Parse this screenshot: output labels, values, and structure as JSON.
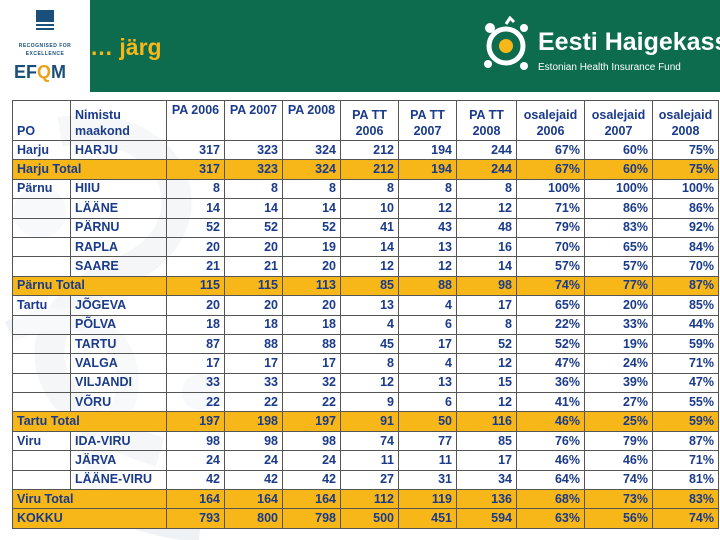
{
  "header": {
    "title": "… järg",
    "efqm": {
      "recognised_line1": "RECOGNISED FOR",
      "recognised_line2": "EXCELLENCE",
      "word_prefix": "EF",
      "word_o": "Q",
      "word_suffix": "M"
    },
    "brand": {
      "name": "Eesti Haigekassa",
      "subtitle": "Estonian Health Insurance Fund"
    }
  },
  "colors": {
    "band": "#0d6b4e",
    "accent": "#f7b719",
    "text": "#1a3a8a"
  },
  "table": {
    "headers": {
      "po": "PO",
      "nimistu_line1": "Nimistu",
      "nimistu_line2": "maakond",
      "pa2006": "PA 2006",
      "pa2007": "PA 2007",
      "pa2008": "PA 2008",
      "patt1_line1": "PA TT",
      "patt1_line2": "2006",
      "patt2_line1": "PA TT",
      "patt2_line2": "2007",
      "patt3_line1": "PA TT",
      "patt3_line2": "2008",
      "os1_line1": "osalejaid",
      "os1_line2": "2006",
      "os2_line1": "osalejaid",
      "os2_line2": "2007",
      "os3_line1": "osalejaid",
      "os3_line2": "2008"
    },
    "rows": [
      {
        "po": "Harju",
        "county": "HARJU",
        "v": [
          "317",
          "323",
          "324",
          "212",
          "194",
          "244",
          "67%",
          "60%",
          "75%"
        ],
        "total": false
      },
      {
        "po": "Harju Total",
        "county": "",
        "v": [
          "317",
          "323",
          "324",
          "212",
          "194",
          "244",
          "67%",
          "60%",
          "75%"
        ],
        "total": true
      },
      {
        "po": "Pärnu",
        "county": "HIIU",
        "v": [
          "8",
          "8",
          "8",
          "8",
          "8",
          "8",
          "100%",
          "100%",
          "100%"
        ],
        "total": false
      },
      {
        "po": "",
        "county": "LÄÄNE",
        "v": [
          "14",
          "14",
          "14",
          "10",
          "12",
          "12",
          "71%",
          "86%",
          "86%"
        ],
        "total": false
      },
      {
        "po": "",
        "county": "PÄRNU",
        "v": [
          "52",
          "52",
          "52",
          "41",
          "43",
          "48",
          "79%",
          "83%",
          "92%"
        ],
        "total": false
      },
      {
        "po": "",
        "county": "RAPLA",
        "v": [
          "20",
          "20",
          "19",
          "14",
          "13",
          "16",
          "70%",
          "65%",
          "84%"
        ],
        "total": false
      },
      {
        "po": "",
        "county": "SAARE",
        "v": [
          "21",
          "21",
          "20",
          "12",
          "12",
          "14",
          "57%",
          "57%",
          "70%"
        ],
        "total": false
      },
      {
        "po": "Pärnu Total",
        "county": "",
        "v": [
          "115",
          "115",
          "113",
          "85",
          "88",
          "98",
          "74%",
          "77%",
          "87%"
        ],
        "total": true
      },
      {
        "po": "Tartu",
        "county": "JÕGEVA",
        "v": [
          "20",
          "20",
          "20",
          "13",
          "4",
          "17",
          "65%",
          "20%",
          "85%"
        ],
        "total": false
      },
      {
        "po": "",
        "county": "PÕLVA",
        "v": [
          "18",
          "18",
          "18",
          "4",
          "6",
          "8",
          "22%",
          "33%",
          "44%"
        ],
        "total": false
      },
      {
        "po": "",
        "county": "TARTU",
        "v": [
          "87",
          "88",
          "88",
          "45",
          "17",
          "52",
          "52%",
          "19%",
          "59%"
        ],
        "total": false
      },
      {
        "po": "",
        "county": "VALGA",
        "v": [
          "17",
          "17",
          "17",
          "8",
          "4",
          "12",
          "47%",
          "24%",
          "71%"
        ],
        "total": false
      },
      {
        "po": "",
        "county": "VILJANDI",
        "v": [
          "33",
          "33",
          "32",
          "12",
          "13",
          "15",
          "36%",
          "39%",
          "47%"
        ],
        "total": false
      },
      {
        "po": "",
        "county": "VÕRU",
        "v": [
          "22",
          "22",
          "22",
          "9",
          "6",
          "12",
          "41%",
          "27%",
          "55%"
        ],
        "total": false
      },
      {
        "po": "Tartu Total",
        "county": "",
        "v": [
          "197",
          "198",
          "197",
          "91",
          "50",
          "116",
          "46%",
          "25%",
          "59%"
        ],
        "total": true
      },
      {
        "po": "Viru",
        "county": "IDA-VIRU",
        "v": [
          "98",
          "98",
          "98",
          "74",
          "77",
          "85",
          "76%",
          "79%",
          "87%"
        ],
        "total": false
      },
      {
        "po": "",
        "county": "JÄRVA",
        "v": [
          "24",
          "24",
          "24",
          "11",
          "11",
          "17",
          "46%",
          "46%",
          "71%"
        ],
        "total": false
      },
      {
        "po": "",
        "county": "LÄÄNE-VIRU",
        "v": [
          "42",
          "42",
          "42",
          "27",
          "31",
          "34",
          "64%",
          "74%",
          "81%"
        ],
        "total": false
      },
      {
        "po": "Viru Total",
        "county": "",
        "v": [
          "164",
          "164",
          "164",
          "112",
          "119",
          "136",
          "68%",
          "73%",
          "83%"
        ],
        "total": true
      },
      {
        "po": "KOKKU",
        "county": "",
        "v": [
          "793",
          "800",
          "798",
          "500",
          "451",
          "594",
          "63%",
          "56%",
          "74%"
        ],
        "total": true
      }
    ]
  }
}
